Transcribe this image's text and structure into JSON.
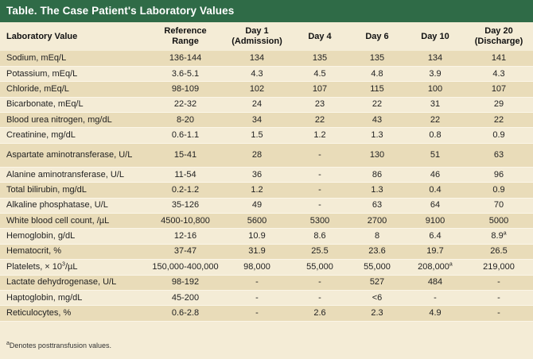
{
  "title": "Table. The Case Patient's Laboratory Values",
  "headers": {
    "name": "Laboratory Value",
    "ref_line1": "Reference",
    "ref_line2": "Range",
    "day1_line1": "Day 1",
    "day1_line2": "(Admission)",
    "day4": "Day 4",
    "day6": "Day 6",
    "day10": "Day 10",
    "day20_line1": "Day 20",
    "day20_line2": "(Discharge)"
  },
  "rows": [
    {
      "name": "Sodium, mEq/L",
      "ref": "136-144",
      "d1": "134",
      "d4": "135",
      "d6": "135",
      "d10": "134",
      "d20": "141"
    },
    {
      "name": "Potassium, mEq/L",
      "ref": "3.6-5.1",
      "d1": "4.3",
      "d4": "4.5",
      "d6": "4.8",
      "d10": "3.9",
      "d20": "4.3"
    },
    {
      "name": "Chloride, mEq/L",
      "ref": "98-109",
      "d1": "102",
      "d4": "107",
      "d6": "115",
      "d10": "100",
      "d20": "107"
    },
    {
      "name": "Bicarbonate, mEq/L",
      "ref": "22-32",
      "d1": "24",
      "d4": "23",
      "d6": "22",
      "d10": "31",
      "d20": "29"
    },
    {
      "name": "Blood urea nitrogen, mg/dL",
      "ref": "8-20",
      "d1": "34",
      "d4": "22",
      "d6": "43",
      "d10": "22",
      "d20": "22"
    },
    {
      "name": "Creatinine, mg/dL",
      "ref": "0.6-1.1",
      "d1": "1.5",
      "d4": "1.2",
      "d6": "1.3",
      "d10": "0.8",
      "d20": "0.9"
    },
    {
      "name": "Aspartate aminotransferase, U/L",
      "ref": "15-41",
      "d1": "28",
      "d4": "-",
      "d6": "130",
      "d10": "51",
      "d20": "63"
    },
    {
      "name": "Alanine aminotransferase, U/L",
      "ref": "11-54",
      "d1": "36",
      "d4": "-",
      "d6": "86",
      "d10": "46",
      "d20": "96"
    },
    {
      "name": "Total bilirubin, mg/dL",
      "ref": "0.2-1.2",
      "d1": "1.2",
      "d4": "-",
      "d6": "1.3",
      "d10": "0.4",
      "d20": "0.9"
    },
    {
      "name": "Alkaline phosphatase, U/L",
      "ref": "35-126",
      "d1": "49",
      "d4": "-",
      "d6": "63",
      "d10": "64",
      "d20": "70"
    },
    {
      "name": "White blood cell count, /µL",
      "ref": "4500-10,800",
      "d1": "5600",
      "d4": "5300",
      "d6": "2700",
      "d10": "9100",
      "d20": "5000"
    },
    {
      "name": "Hemoglobin, g/dL",
      "ref": "12-16",
      "d1": "10.9",
      "d4": "8.6",
      "d6": "8",
      "d10": "6.4",
      "d20": "8.9",
      "d20_sup": "a"
    },
    {
      "name": "Hematocrit, %",
      "ref": "37-47",
      "d1": "31.9",
      "d4": "25.5",
      "d6": "23.6",
      "d10": "19.7",
      "d20": "26.5"
    },
    {
      "name": "Platelets, × 10",
      "name_sup": "3",
      "name_suffix": "/µL",
      "ref": "150,000-400,000",
      "d1": "98,000",
      "d4": "55,000",
      "d6": "55,000",
      "d10": "208,000",
      "d10_sup": "a",
      "d20": "219,000"
    },
    {
      "name": "Lactate dehydrogenase, U/L",
      "ref": "98-192",
      "d1": "-",
      "d4": "-",
      "d6": "527",
      "d10": "484",
      "d20": "-"
    },
    {
      "name": "Haptoglobin, mg/dL",
      "ref": "45-200",
      "d1": "-",
      "d4": "-",
      "d6": "<6",
      "d10": "-",
      "d20": "-"
    },
    {
      "name": "Reticulocytes, %",
      "ref": "0.6-2.8",
      "d1": "-",
      "d4": "2.6",
      "d6": "2.3",
      "d10": "4.9",
      "d20": "-"
    }
  ],
  "footnote_marker": "a",
  "footnote": "Denotes posttransfusion values."
}
